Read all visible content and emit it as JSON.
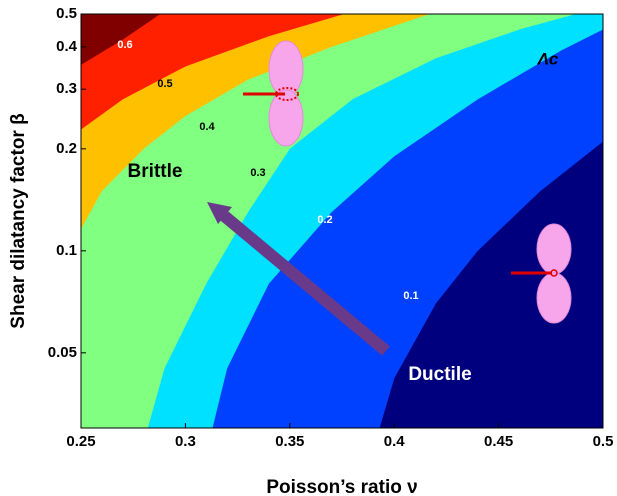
{
  "chart_data": {
    "type": "contour",
    "xlabel": "Poisson’s ratio ν",
    "ylabel": "Shear dilatancy factor β",
    "xlim": [
      0.25,
      0.5
    ],
    "ylim": [
      0.03,
      0.5
    ],
    "ylog": true,
    "xticks": [
      0.25,
      0.3,
      0.35,
      0.4,
      0.45,
      0.5
    ],
    "yticks": [
      0.05,
      0.1,
      0.2,
      0.3,
      0.4,
      0.5
    ],
    "base_color": "#00007f",
    "contours": [
      {
        "label": "0.1",
        "color": "#0040ff",
        "x": [
          0.393,
          0.4,
          0.42,
          0.44,
          0.47,
          0.5
        ],
        "y": [
          0.03,
          0.042,
          0.07,
          0.1,
          0.15,
          0.21
        ]
      },
      {
        "label": "0.2",
        "color": "#00e0ff",
        "x": [
          0.313,
          0.32,
          0.34,
          0.37,
          0.4,
          0.44,
          0.48,
          0.5
        ],
        "y": [
          0.03,
          0.045,
          0.08,
          0.13,
          0.19,
          0.28,
          0.39,
          0.45
        ]
      },
      {
        "label": "0.3",
        "color": "#80ff80",
        "x": [
          0.282,
          0.29,
          0.31,
          0.33,
          0.35,
          0.38,
          0.42,
          0.46,
          0.487
        ],
        "y": [
          0.03,
          0.045,
          0.08,
          0.13,
          0.2,
          0.28,
          0.37,
          0.45,
          0.5
        ]
      },
      {
        "label": "0.4",
        "color": "#ffc000",
        "x": [
          0.25,
          0.26,
          0.28,
          0.3,
          0.33,
          0.37,
          0.417
        ],
        "y": [
          0.116,
          0.15,
          0.2,
          0.25,
          0.32,
          0.4,
          0.5
        ]
      },
      {
        "label": "0.5",
        "color": "#ff2000",
        "x": [
          0.25,
          0.27,
          0.3,
          0.34,
          0.376
        ],
        "y": [
          0.228,
          0.28,
          0.35,
          0.43,
          0.5
        ]
      },
      {
        "label": "0.6",
        "color": "#800000",
        "x": [
          0.25,
          0.27,
          0.288
        ],
        "y": [
          0.354,
          0.42,
          0.5
        ]
      }
    ],
    "annotations": [
      "Brittle",
      "Ductile",
      "Λc"
    ]
  }
}
